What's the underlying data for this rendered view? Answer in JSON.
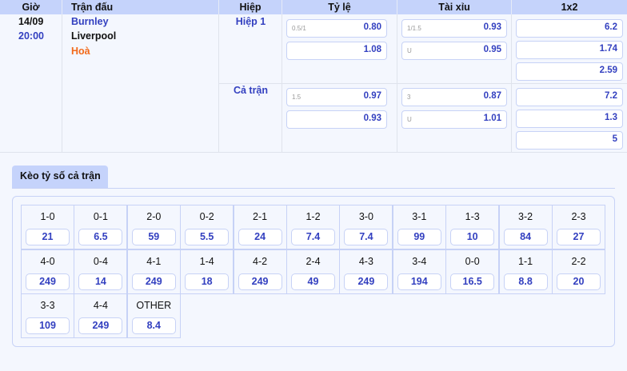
{
  "headers": {
    "time": "Giờ",
    "match": "Trận đấu",
    "half": "Hiệp",
    "handicap": "Tỷ lệ",
    "overunder": "Tài xỉu",
    "x12": "1x2"
  },
  "match": {
    "date": "14/09",
    "time": "20:00",
    "home": "Burnley",
    "away": "Liverpool",
    "draw": "Hoà"
  },
  "periods": [
    {
      "name": "Hiệp 1",
      "handicap": [
        {
          "line": "0.5/1",
          "odds": "0.80"
        },
        {
          "line": "",
          "odds": "1.08"
        }
      ],
      "overunder": [
        {
          "line": "1/1.5",
          "odds": "0.93"
        },
        {
          "line": "U",
          "odds": "0.95"
        }
      ],
      "x12": [
        "6.2",
        "1.74",
        "2.59"
      ]
    },
    {
      "name": "Cả trận",
      "handicap": [
        {
          "line": "1.5",
          "odds": "0.97"
        },
        {
          "line": "",
          "odds": "0.93"
        }
      ],
      "overunder": [
        {
          "line": "3",
          "odds": "0.87"
        },
        {
          "line": "U",
          "odds": "1.01"
        }
      ],
      "x12": [
        "7.2",
        "1.3",
        "5"
      ]
    }
  ],
  "correct_score": {
    "tab_label": "Kèo tỷ số cả trận",
    "items": [
      {
        "score": "1-0",
        "odds": "21"
      },
      {
        "score": "0-1",
        "odds": "6.5"
      },
      {
        "score": "2-0",
        "odds": "59"
      },
      {
        "score": "0-2",
        "odds": "5.5"
      },
      {
        "score": "2-1",
        "odds": "24"
      },
      {
        "score": "1-2",
        "odds": "7.4"
      },
      {
        "score": "3-0",
        "odds": "7.4"
      },
      {
        "score": "3-1",
        "odds": "99"
      },
      {
        "score": "1-3",
        "odds": "10"
      },
      {
        "score": "3-2",
        "odds": "84"
      },
      {
        "score": "2-3",
        "odds": "27"
      },
      {
        "score": "4-0",
        "odds": "249"
      },
      {
        "score": "0-4",
        "odds": "14"
      },
      {
        "score": "4-1",
        "odds": "249"
      },
      {
        "score": "1-4",
        "odds": "18"
      },
      {
        "score": "4-2",
        "odds": "249"
      },
      {
        "score": "2-4",
        "odds": "49"
      },
      {
        "score": "4-3",
        "odds": "249"
      },
      {
        "score": "3-4",
        "odds": "194"
      },
      {
        "score": "0-0",
        "odds": "16.5"
      },
      {
        "score": "1-1",
        "odds": "8.8"
      },
      {
        "score": "2-2",
        "odds": "20"
      },
      {
        "score": "3-3",
        "odds": "109"
      },
      {
        "score": "4-4",
        "odds": "249"
      },
      {
        "score": "OTHER",
        "odds": "8.4"
      }
    ]
  },
  "colors": {
    "header_bg": "#c5d3fb",
    "accent": "#3340c0",
    "draw": "#f26a1b"
  }
}
